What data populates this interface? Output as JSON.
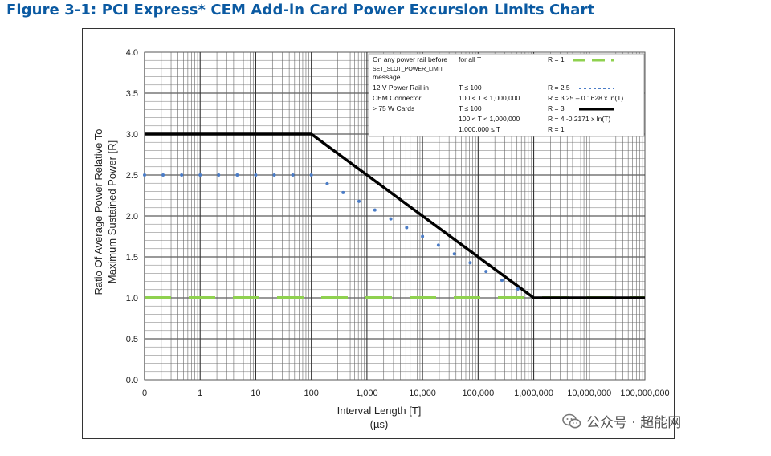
{
  "figure_title": "Figure 3-1: PCI Express* CEM Add-in Card Power Excursion Limits Chart",
  "watermark": {
    "text": "公众号 · 超能网",
    "icon": "wechat-icon"
  },
  "colors": {
    "title": "#0b5aa2",
    "line_r3": "#000000",
    "line_r25": "#4a7cc7",
    "line_r1_green": "#8fd14f",
    "line_r1_black": "#000000"
  },
  "chart_data": {
    "type": "line",
    "xscale": "log",
    "xlabel": "Interval Length  [T]",
    "xunit": "(µs)",
    "ylabel_line1": "Ratio Of Average Power Relative To",
    "ylabel_line2": "Maximum Sustained Power  [R]",
    "ylim": [
      0,
      4
    ],
    "yticks": [
      "0.0",
      "0.5",
      "1.0",
      "1.5",
      "2.0",
      "2.5",
      "3.0",
      "3.5",
      "4.0"
    ],
    "xticks": [
      "0",
      "1",
      "10",
      "100",
      "1,000",
      "10,000",
      "100,000",
      "1,000,000",
      "10,000,000",
      "100,000,000"
    ],
    "grid": true,
    "legend_position": "top-right",
    "legend": {
      "rows": [
        [
          "On any power rail before",
          "for all T",
          "R = 1"
        ],
        [
          "SET_SLOT_POWER_LIMIT",
          "",
          ""
        ],
        [
          "message",
          "",
          ""
        ],
        [
          "12 V Power Rail in",
          "T ≤ 100",
          "R = 2.5"
        ],
        [
          "CEM Connector",
          "100 < T < 1,000,000",
          "R = 3.25 – 0.1628 x ln(T)"
        ],
        [
          "> 75 W Cards",
          "T ≤ 100",
          "R = 3"
        ],
        [
          "",
          "100 < T < 1,000,000",
          "R = 4 -0.2171 x  ln(T)"
        ],
        [
          "",
          "1,000,000  ≤ T",
          "R = 1"
        ]
      ]
    },
    "series": [
      {
        "style": "dashed-green",
        "x": [
          0.1,
          100000000
        ],
        "y": [
          1,
          1
        ]
      },
      {
        "style": "dotted-blue",
        "x": [
          0.1,
          100,
          1000000
        ],
        "y": [
          2.5,
          2.5,
          1.0
        ],
        "formula_range": [
          100,
          1000000
        ]
      },
      {
        "style": "solid-black",
        "x": [
          0.1,
          100,
          1000000,
          100000000
        ],
        "y": [
          3,
          3,
          1,
          1
        ]
      }
    ]
  }
}
